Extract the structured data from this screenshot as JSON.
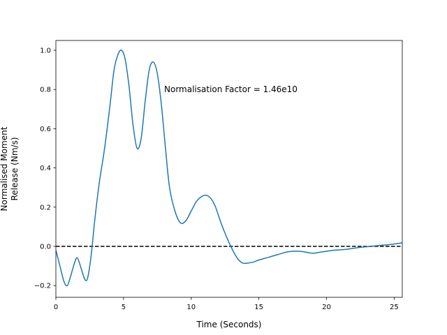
{
  "chart_data": {
    "type": "line",
    "title": "",
    "xlabel": "Time (Seconds)",
    "ylabel_lines": [
      "Normalised Moment",
      "Release (Nm/s)"
    ],
    "xlim": [
      0,
      25.6
    ],
    "ylim": [
      -0.26,
      1.05
    ],
    "xticks": [
      0,
      5,
      10,
      15,
      20,
      25
    ],
    "yticks": [
      -0.2,
      0.0,
      0.2,
      0.4,
      0.6,
      0.8,
      1.0
    ],
    "ytick_labels": [
      "−0.2",
      "0.0",
      "0.2",
      "0.4",
      "0.6",
      "0.8",
      "1.0"
    ],
    "grid": false,
    "annotation": {
      "text": "Normalisation Factor = 1.46e10",
      "x": 8.0,
      "y": 0.8
    },
    "reference_line": {
      "y": 0.0,
      "style": "dashed",
      "color": "#000000"
    },
    "series": [
      {
        "color": "#1f77b4",
        "x": [
          0,
          0.3,
          0.6,
          0.85,
          1.1,
          1.4,
          1.6,
          1.9,
          2.15,
          2.35,
          2.6,
          2.9,
          3.2,
          3.6,
          4.0,
          4.3,
          4.6,
          4.85,
          5.1,
          5.4,
          5.7,
          6.0,
          6.3,
          6.6,
          6.9,
          7.2,
          7.5,
          7.8,
          8.1,
          8.4,
          8.8,
          9.2,
          9.6,
          10.0,
          10.4,
          10.8,
          11.15,
          11.5,
          11.8,
          12.2,
          12.6,
          13.0,
          13.4,
          13.8,
          14.2,
          14.6,
          15.0,
          15.5,
          16.0,
          16.5,
          17.0,
          17.5,
          18.0,
          18.5,
          19.0,
          19.5,
          20.0,
          20.5,
          21.0,
          21.5,
          22.0,
          22.5,
          23.0,
          23.5,
          24.0,
          24.5,
          25.0,
          25.6
        ],
        "y": [
          -0.02,
          -0.1,
          -0.18,
          -0.2,
          -0.15,
          -0.08,
          -0.06,
          -0.12,
          -0.17,
          -0.16,
          -0.05,
          0.15,
          0.32,
          0.5,
          0.72,
          0.9,
          0.98,
          1.0,
          0.96,
          0.82,
          0.62,
          0.5,
          0.55,
          0.74,
          0.9,
          0.94,
          0.88,
          0.72,
          0.5,
          0.3,
          0.18,
          0.12,
          0.13,
          0.18,
          0.23,
          0.255,
          0.26,
          0.24,
          0.2,
          0.12,
          0.05,
          -0.01,
          -0.06,
          -0.085,
          -0.085,
          -0.08,
          -0.07,
          -0.06,
          -0.05,
          -0.04,
          -0.03,
          -0.025,
          -0.025,
          -0.03,
          -0.035,
          -0.03,
          -0.025,
          -0.02,
          -0.018,
          -0.015,
          -0.01,
          -0.005,
          -0.002,
          0.002,
          0.005,
          0.008,
          0.012,
          0.018
        ]
      }
    ]
  }
}
